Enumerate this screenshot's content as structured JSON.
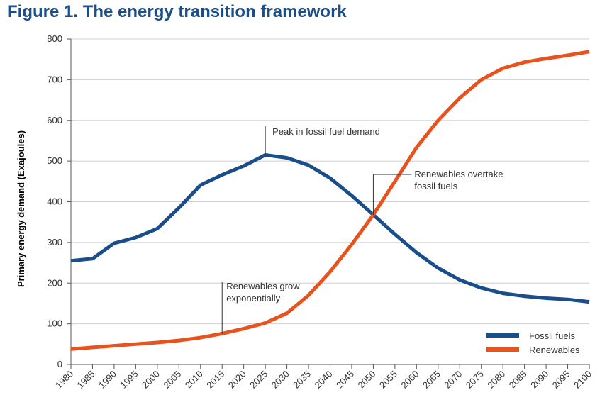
{
  "title": "Figure 1. The energy transition framework",
  "chart_data": {
    "type": "line",
    "ylabel": "Primary energy demand (Exajoules)",
    "xlabel": "",
    "ylim": [
      0,
      800
    ],
    "yticks": [
      0,
      100,
      200,
      300,
      400,
      500,
      600,
      700,
      800
    ],
    "grid": "horizontal",
    "legend_position": "bottom-right",
    "x": [
      "1980",
      "1985",
      "1990",
      "1995",
      "2000",
      "2005",
      "2010",
      "2015",
      "2020",
      "2025",
      "2030",
      "2035",
      "2040",
      "2045",
      "2050",
      "2055",
      "2060",
      "2065",
      "2070",
      "2075",
      "2080",
      "2085",
      "2090",
      "2095",
      "2100"
    ],
    "xtick_labels": [
      "1980",
      "1985",
      "1990",
      "1995",
      "2000",
      "2005",
      "2010",
      "2015",
      "2020",
      "2025",
      "2030",
      "2035",
      "2040",
      "2045",
      "2050",
      "2055",
      "2060",
      "2065",
      "2070",
      "2075",
      "2080",
      "2085",
      "2090",
      "2095",
      "2100"
    ],
    "series": [
      {
        "name": "Fossil fuels",
        "color": "#1a4e8a",
        "values": [
          255,
          260,
          298,
          312,
          334,
          385,
          441,
          466,
          488,
          515,
          508,
          490,
          458,
          415,
          368,
          320,
          275,
          237,
          208,
          188,
          175,
          168,
          163,
          160,
          154
        ]
      },
      {
        "name": "Renewables",
        "color": "#e8521c",
        "values": [
          38,
          42,
          46,
          50,
          54,
          59,
          66,
          76,
          88,
          102,
          126,
          170,
          228,
          295,
          368,
          450,
          533,
          600,
          655,
          700,
          728,
          743,
          752,
          760,
          769
        ]
      }
    ],
    "annotations": [
      {
        "lines": [
          "Peak in fossil fuel demand"
        ],
        "x": "2025",
        "y": 515
      },
      {
        "lines": [
          "Renewables overtake",
          "fossil fuels"
        ],
        "x": "2050",
        "y": 368
      },
      {
        "lines": [
          "Renewables grow",
          "exponentially"
        ],
        "x": "2015",
        "y": 76
      }
    ]
  }
}
